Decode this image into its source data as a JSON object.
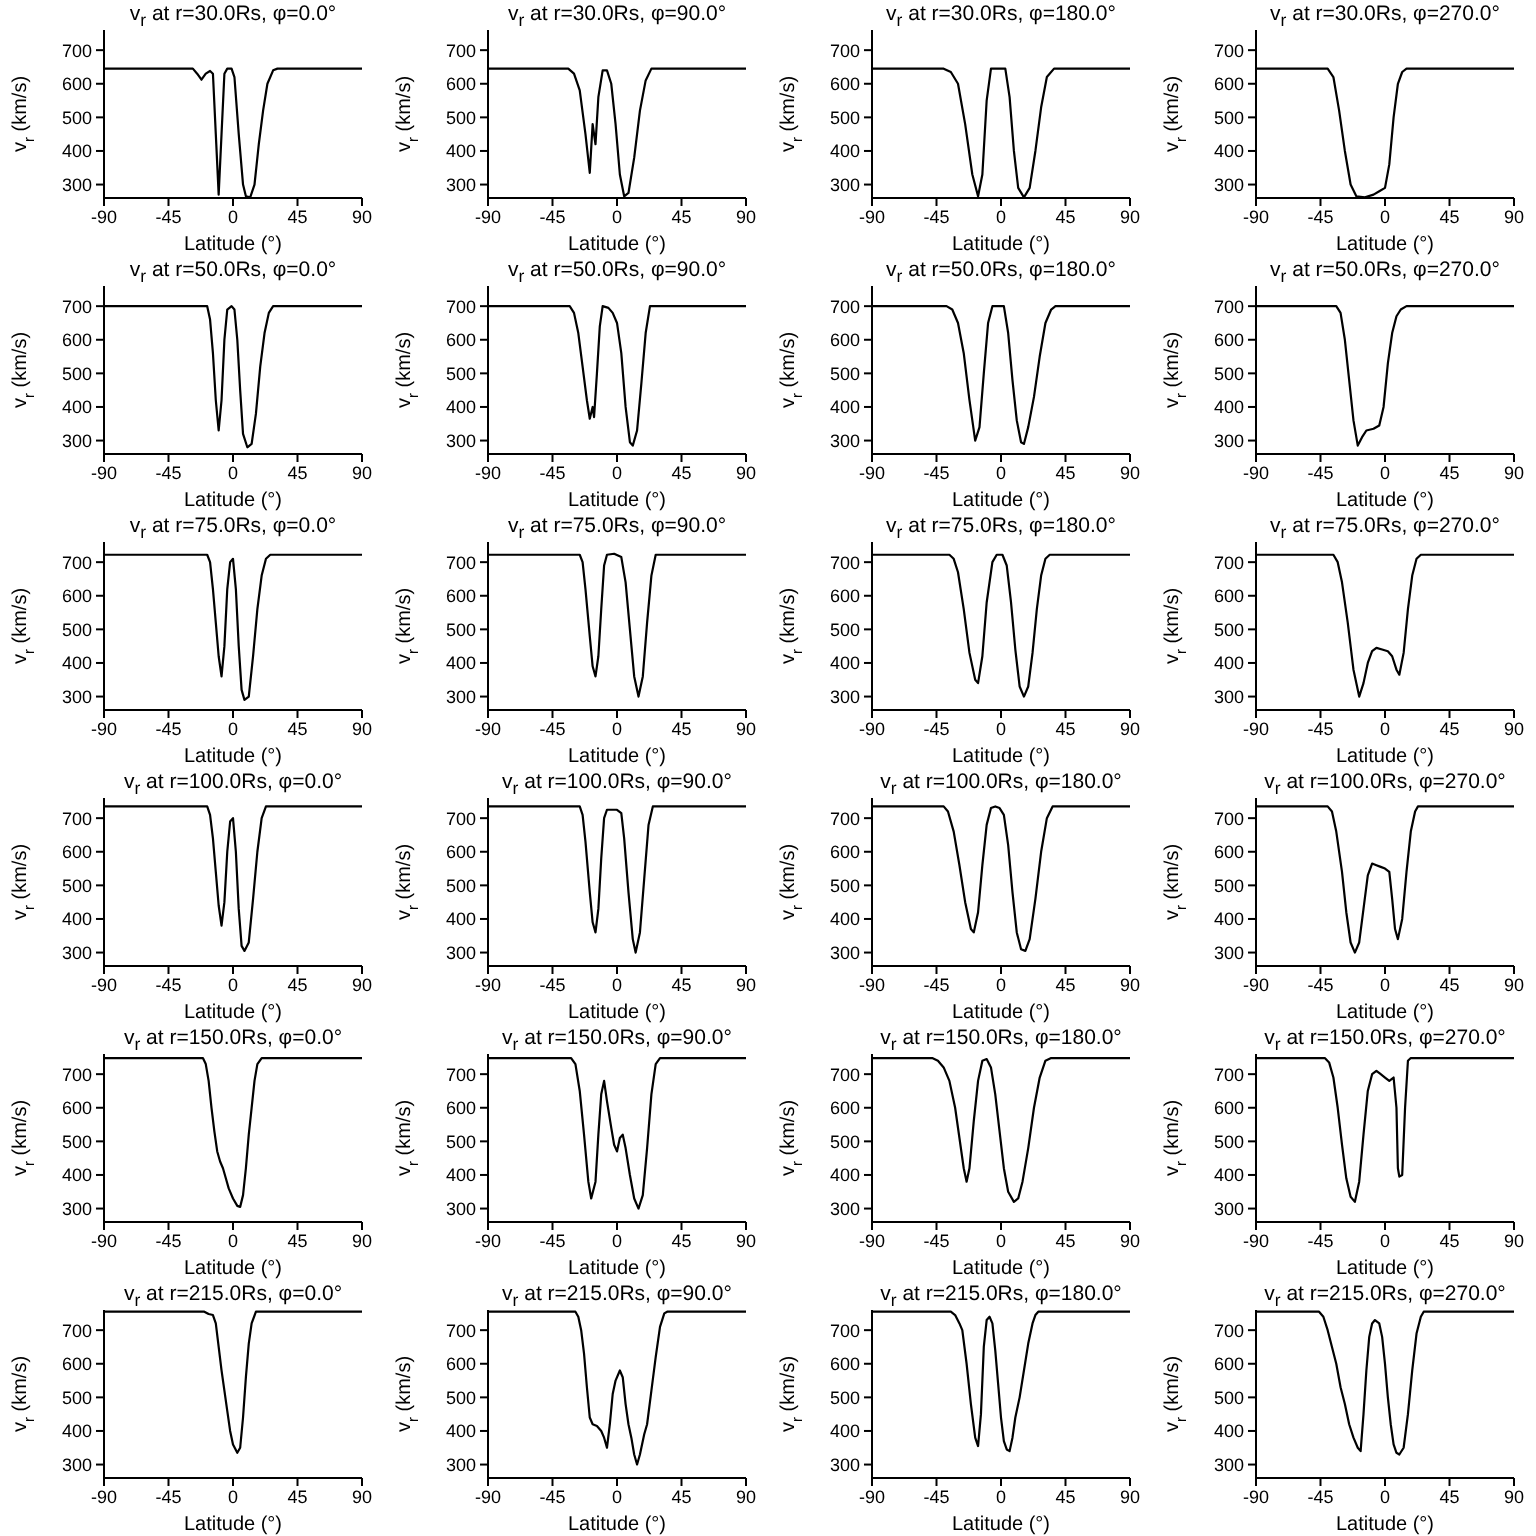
{
  "chart_data": [
    {
      "type": "line",
      "title": "v$_{r}$ at r=30.0Rs, φ=0.0°",
      "xlabel": "Latitude (°)",
      "ylabel": "v$_{r}$ (km/s)",
      "xlim": [
        -90,
        90
      ],
      "xticks": [
        -90,
        -45,
        0,
        45,
        90
      ],
      "ylim": [
        260,
        760
      ],
      "yticks": [
        300,
        400,
        500,
        600,
        700
      ],
      "marker": "none",
      "series": [
        {
          "color": "#000000",
          "x": [
            -90,
            -28,
            -25,
            -22,
            -19,
            -16,
            -14,
            -12,
            -10,
            -8,
            -6,
            -4,
            -1,
            1,
            4,
            7,
            9,
            12,
            15,
            18,
            21,
            24,
            28,
            31,
            90
          ],
          "values": [
            645,
            645,
            630,
            612,
            630,
            638,
            630,
            450,
            270,
            450,
            630,
            645,
            645,
            620,
            450,
            300,
            265,
            262,
            300,
            420,
            520,
            600,
            640,
            645,
            645
          ]
        }
      ]
    },
    {
      "type": "line",
      "title": "v$_{r}$ at r=30.0Rs, φ=90.0°",
      "xlabel": "Latitude (°)",
      "ylabel": "v$_{r}$ (km/s)",
      "xlim": [
        -90,
        90
      ],
      "xticks": [
        -90,
        -45,
        0,
        45,
        90
      ],
      "ylim": [
        260,
        760
      ],
      "yticks": [
        300,
        400,
        500,
        600,
        700
      ],
      "marker": "none",
      "series": [
        {
          "color": "#000000",
          "x": [
            -90,
            -34,
            -30,
            -26,
            -22,
            -19,
            -17,
            -15,
            -13,
            -10,
            -7,
            -4,
            -1,
            2,
            5,
            8,
            12,
            16,
            20,
            24,
            90
          ],
          "values": [
            645,
            645,
            630,
            580,
            450,
            335,
            480,
            420,
            560,
            640,
            640,
            600,
            480,
            330,
            265,
            275,
            380,
            520,
            610,
            645,
            645
          ]
        }
      ]
    },
    {
      "type": "line",
      "title": "v$_{r}$ at r=30.0Rs, φ=180.0°",
      "xlabel": "Latitude (°)",
      "ylabel": "v$_{r}$ (km/s)",
      "xlim": [
        -90,
        90
      ],
      "xticks": [
        -90,
        -45,
        0,
        45,
        90
      ],
      "ylim": [
        260,
        760
      ],
      "yticks": [
        300,
        400,
        500,
        600,
        700
      ],
      "marker": "none",
      "series": [
        {
          "color": "#000000",
          "x": [
            -90,
            -40,
            -35,
            -30,
            -25,
            -20,
            -16,
            -13,
            -10,
            -7,
            3,
            6,
            9,
            12,
            16,
            20,
            24,
            28,
            32,
            37,
            90
          ],
          "values": [
            645,
            645,
            635,
            600,
            480,
            330,
            265,
            330,
            550,
            645,
            645,
            560,
            400,
            290,
            262,
            290,
            400,
            530,
            620,
            645,
            645
          ]
        }
      ]
    },
    {
      "type": "line",
      "title": "v$_{r}$ at r=30.0Rs, φ=270.0°",
      "xlabel": "Latitude (°)",
      "ylabel": "v$_{r}$ (km/s)",
      "xlim": [
        -90,
        90
      ],
      "xticks": [
        -90,
        -45,
        0,
        45,
        90
      ],
      "ylim": [
        260,
        760
      ],
      "yticks": [
        300,
        400,
        500,
        600,
        700
      ],
      "marker": "none",
      "series": [
        {
          "color": "#000000",
          "x": [
            -90,
            -40,
            -36,
            -32,
            -28,
            -24,
            -20,
            -14,
            -8,
            -4,
            0,
            3,
            6,
            9,
            12,
            15,
            90
          ],
          "values": [
            645,
            645,
            620,
            520,
            400,
            300,
            265,
            262,
            270,
            280,
            290,
            360,
            500,
            600,
            635,
            645,
            645
          ]
        }
      ]
    },
    {
      "type": "line",
      "title": "v$_{r}$ at r=50.0Rs, φ=0.0°",
      "xlabel": "Latitude (°)",
      "ylabel": "v$_{r}$ (km/s)",
      "xlim": [
        -90,
        90
      ],
      "xticks": [
        -90,
        -45,
        0,
        45,
        90
      ],
      "ylim": [
        260,
        760
      ],
      "yticks": [
        300,
        400,
        500,
        600,
        700
      ],
      "marker": "none",
      "series": [
        {
          "color": "#000000",
          "x": [
            -90,
            -18,
            -16,
            -14,
            -12,
            -10,
            -8,
            -6,
            -4,
            -1,
            1,
            3,
            5,
            7,
            10,
            13,
            16,
            19,
            22,
            25,
            28,
            90
          ],
          "values": [
            700,
            700,
            660,
            560,
            420,
            330,
            420,
            600,
            690,
            700,
            690,
            600,
            450,
            320,
            280,
            290,
            380,
            520,
            620,
            680,
            700,
            700
          ]
        }
      ]
    },
    {
      "type": "line",
      "title": "v$_{r}$ at r=50.0Rs, φ=90.0°",
      "xlabel": "Latitude (°)",
      "ylabel": "v$_{r}$ (km/s)",
      "xlim": [
        -90,
        90
      ],
      "xticks": [
        -90,
        -45,
        0,
        45,
        90
      ],
      "ylim": [
        260,
        760
      ],
      "yticks": [
        300,
        400,
        500,
        600,
        700
      ],
      "marker": "none",
      "series": [
        {
          "color": "#000000",
          "x": [
            -90,
            -33,
            -30,
            -27,
            -24,
            -21,
            -19,
            -17,
            -16,
            -14,
            -12,
            -10,
            -6,
            -3,
            0,
            3,
            6,
            9,
            11,
            14,
            17,
            20,
            23,
            90
          ],
          "values": [
            700,
            700,
            680,
            620,
            520,
            420,
            365,
            400,
            370,
            500,
            640,
            700,
            695,
            680,
            650,
            560,
            400,
            295,
            285,
            330,
            470,
            620,
            700,
            700
          ]
        }
      ]
    },
    {
      "type": "line",
      "title": "v$_{r}$ at r=50.0Rs, φ=180.0°",
      "xlabel": "Latitude (°)",
      "ylabel": "v$_{r}$ (km/s)",
      "xlim": [
        -90,
        90
      ],
      "xticks": [
        -90,
        -45,
        0,
        45,
        90
      ],
      "ylim": [
        260,
        760
      ],
      "yticks": [
        300,
        400,
        500,
        600,
        700
      ],
      "marker": "none",
      "series": [
        {
          "color": "#000000",
          "x": [
            -90,
            -38,
            -34,
            -30,
            -26,
            -22,
            -18,
            -15,
            -12,
            -9,
            -6,
            2,
            5,
            8,
            11,
            14,
            16,
            19,
            23,
            27,
            31,
            35,
            38,
            90
          ],
          "values": [
            700,
            700,
            690,
            650,
            560,
            420,
            300,
            340,
            500,
            650,
            700,
            700,
            620,
            480,
            360,
            295,
            290,
            340,
            430,
            550,
            650,
            690,
            700,
            700
          ]
        }
      ]
    },
    {
      "type": "line",
      "title": "v$_{r}$ at r=50.0Rs, φ=270.0°",
      "xlabel": "Latitude (°)",
      "ylabel": "v$_{r}$ (km/s)",
      "xlim": [
        -90,
        90
      ],
      "xticks": [
        -90,
        -45,
        0,
        45,
        90
      ],
      "ylim": [
        260,
        760
      ],
      "yticks": [
        300,
        400,
        500,
        600,
        700
      ],
      "marker": "none",
      "series": [
        {
          "color": "#000000",
          "x": [
            -90,
            -34,
            -31,
            -28,
            -25,
            -22,
            -19,
            -16,
            -13,
            -8,
            -4,
            -1,
            2,
            5,
            8,
            11,
            15,
            90
          ],
          "values": [
            700,
            700,
            680,
            600,
            480,
            360,
            285,
            310,
            330,
            335,
            345,
            400,
            530,
            620,
            670,
            690,
            700,
            700
          ]
        }
      ]
    },
    {
      "type": "line",
      "title": "v$_{r}$ at r=75.0Rs, φ=0.0°",
      "xlabel": "Latitude (°)",
      "ylabel": "v$_{r}$ (km/s)",
      "xlim": [
        -90,
        90
      ],
      "xticks": [
        -90,
        -45,
        0,
        45,
        90
      ],
      "ylim": [
        260,
        760
      ],
      "yticks": [
        300,
        400,
        500,
        600,
        700
      ],
      "marker": "none",
      "series": [
        {
          "color": "#000000",
          "x": [
            -90,
            -18,
            -16,
            -14,
            -12,
            -10,
            -8,
            -6,
            -4,
            -2,
            0,
            2,
            4,
            6,
            8,
            11,
            14,
            17,
            20,
            23,
            26,
            90
          ],
          "values": [
            722,
            722,
            700,
            620,
            520,
            420,
            360,
            450,
            620,
            700,
            710,
            620,
            450,
            320,
            290,
            300,
            420,
            560,
            660,
            710,
            722,
            722
          ]
        }
      ]
    },
    {
      "type": "line",
      "title": "v$_{r}$ at r=75.0Rs, φ=90.0°",
      "xlabel": "Latitude (°)",
      "ylabel": "v$_{r}$ (km/s)",
      "xlim": [
        -90,
        90
      ],
      "xticks": [
        -90,
        -45,
        0,
        45,
        90
      ],
      "ylim": [
        260,
        760
      ],
      "yticks": [
        300,
        400,
        500,
        600,
        700
      ],
      "marker": "none",
      "series": [
        {
          "color": "#000000",
          "x": [
            -90,
            -26,
            -24,
            -22,
            -19,
            -17,
            -15,
            -13,
            -11,
            -9,
            -7,
            -2,
            3,
            6,
            9,
            12,
            15,
            18,
            21,
            24,
            27,
            90
          ],
          "values": [
            722,
            722,
            700,
            620,
            480,
            390,
            360,
            420,
            560,
            690,
            722,
            725,
            715,
            640,
            500,
            360,
            300,
            360,
            520,
            660,
            722,
            722
          ]
        }
      ]
    },
    {
      "type": "line",
      "title": "v$_{r}$ at r=75.0Rs, φ=180.0°",
      "xlabel": "Latitude (°)",
      "ylabel": "v$_{r}$ (km/s)",
      "xlim": [
        -90,
        90
      ],
      "xticks": [
        -90,
        -45,
        0,
        45,
        90
      ],
      "ylim": [
        260,
        760
      ],
      "yticks": [
        300,
        400,
        500,
        600,
        700
      ],
      "marker": "none",
      "series": [
        {
          "color": "#000000",
          "x": [
            -90,
            -36,
            -33,
            -30,
            -26,
            -22,
            -18,
            -16,
            -13,
            -10,
            -6,
            -3,
            1,
            4,
            7,
            10,
            13,
            16,
            19,
            22,
            25,
            28,
            31,
            34,
            90
          ],
          "values": [
            722,
            722,
            710,
            670,
            560,
            430,
            350,
            340,
            420,
            580,
            700,
            722,
            722,
            690,
            580,
            440,
            330,
            300,
            330,
            430,
            560,
            660,
            710,
            722,
            722
          ]
        }
      ]
    },
    {
      "type": "line",
      "title": "v$_{r}$ at r=75.0Rs, φ=270.0°",
      "xlabel": "Latitude (°)",
      "ylabel": "v$_{r}$ (km/s)",
      "xlim": [
        -90,
        90
      ],
      "xticks": [
        -90,
        -45,
        0,
        45,
        90
      ],
      "ylim": [
        260,
        760
      ],
      "yticks": [
        300,
        400,
        500,
        600,
        700
      ],
      "marker": "none",
      "series": [
        {
          "color": "#000000",
          "x": [
            -90,
            -36,
            -33,
            -30,
            -26,
            -22,
            -18,
            -15,
            -12,
            -9,
            -6,
            -2,
            2,
            5,
            8,
            10,
            13,
            16,
            19,
            22,
            25,
            90
          ],
          "values": [
            722,
            722,
            700,
            640,
            520,
            380,
            300,
            340,
            400,
            435,
            445,
            440,
            435,
            420,
            380,
            365,
            430,
            560,
            660,
            710,
            722,
            722
          ]
        }
      ]
    },
    {
      "type": "line",
      "title": "v$_{r}$ at r=100.0Rs, φ=0.0°",
      "xlabel": "Latitude (°)",
      "ylabel": "v$_{r}$ (km/s)",
      "xlim": [
        -90,
        90
      ],
      "xticks": [
        -90,
        -45,
        0,
        45,
        90
      ],
      "ylim": [
        260,
        760
      ],
      "yticks": [
        300,
        400,
        500,
        600,
        700
      ],
      "marker": "none",
      "series": [
        {
          "color": "#000000",
          "x": [
            -90,
            -18,
            -16,
            -14,
            -12,
            -10,
            -8,
            -6,
            -4,
            -2,
            0,
            2,
            4,
            6,
            8,
            11,
            14,
            17,
            20,
            23,
            90
          ],
          "values": [
            735,
            735,
            710,
            640,
            540,
            440,
            380,
            450,
            600,
            690,
            700,
            600,
            430,
            320,
            305,
            330,
            460,
            600,
            700,
            735,
            735
          ]
        }
      ]
    },
    {
      "type": "line",
      "title": "v$_{r}$ at r=100.0Rs, φ=90.0°",
      "xlabel": "Latitude (°)",
      "ylabel": "v$_{r}$ (km/s)",
      "xlim": [
        -90,
        90
      ],
      "xticks": [
        -90,
        -45,
        0,
        45,
        90
      ],
      "ylim": [
        260,
        760
      ],
      "yticks": [
        300,
        400,
        500,
        600,
        700
      ],
      "marker": "none",
      "series": [
        {
          "color": "#000000",
          "x": [
            -90,
            -26,
            -24,
            -22,
            -19,
            -17,
            -15,
            -13,
            -11,
            -9,
            -7,
            0,
            3,
            5,
            8,
            11,
            13,
            16,
            19,
            22,
            25,
            90
          ],
          "values": [
            735,
            735,
            710,
            630,
            480,
            390,
            360,
            430,
            580,
            700,
            725,
            725,
            715,
            640,
            480,
            340,
            300,
            360,
            520,
            680,
            735,
            735
          ]
        }
      ]
    },
    {
      "type": "line",
      "title": "v$_{r}$ at r=100.0Rs, φ=180.0°",
      "xlabel": "Latitude (°)",
      "ylabel": "v$_{r}$ (km/s)",
      "xlim": [
        -90,
        90
      ],
      "xticks": [
        -90,
        -45,
        0,
        45,
        90
      ],
      "ylim": [
        260,
        760
      ],
      "yticks": [
        300,
        400,
        500,
        600,
        700
      ],
      "marker": "none",
      "series": [
        {
          "color": "#000000",
          "x": [
            -90,
            -40,
            -37,
            -33,
            -29,
            -25,
            -21,
            -19,
            -16,
            -13,
            -10,
            -7,
            -4,
            -1,
            2,
            5,
            8,
            11,
            14,
            17,
            20,
            24,
            28,
            32,
            36,
            90
          ],
          "values": [
            735,
            735,
            720,
            660,
            560,
            450,
            370,
            360,
            420,
            560,
            680,
            730,
            735,
            730,
            710,
            620,
            480,
            360,
            310,
            305,
            340,
            460,
            600,
            700,
            735,
            735
          ]
        }
      ]
    },
    {
      "type": "line",
      "title": "v$_{r}$ at r=100.0Rs, φ=270.0°",
      "xlabel": "Latitude (°)",
      "ylabel": "v$_{r}$ (km/s)",
      "xlim": [
        -90,
        90
      ],
      "xticks": [
        -90,
        -45,
        0,
        45,
        90
      ],
      "ylim": [
        260,
        760
      ],
      "yticks": [
        300,
        400,
        500,
        600,
        700
      ],
      "marker": "none",
      "series": [
        {
          "color": "#000000",
          "x": [
            -90,
            -40,
            -37,
            -34,
            -30,
            -27,
            -24,
            -21,
            -18,
            -15,
            -12,
            -9,
            -6,
            -3,
            0,
            3,
            5,
            7,
            9,
            12,
            15,
            18,
            21,
            23,
            90
          ],
          "values": [
            735,
            735,
            720,
            660,
            540,
            420,
            330,
            300,
            330,
            430,
            530,
            565,
            560,
            555,
            550,
            540,
            460,
            370,
            340,
            400,
            540,
            660,
            720,
            735,
            735
          ]
        }
      ]
    },
    {
      "type": "line",
      "title": "v$_{r}$ at r=150.0Rs, φ=0.0°",
      "xlabel": "Latitude (°)",
      "ylabel": "v$_{r}$ (km/s)",
      "xlim": [
        -90,
        90
      ],
      "xticks": [
        -90,
        -45,
        0,
        45,
        90
      ],
      "ylim": [
        260,
        760
      ],
      "yticks": [
        300,
        400,
        500,
        600,
        700
      ],
      "marker": "none",
      "series": [
        {
          "color": "#000000",
          "x": [
            -90,
            -21,
            -19,
            -17,
            -15,
            -13,
            -11,
            -9,
            -7,
            -5,
            -3,
            0,
            3,
            5,
            7,
            9,
            11,
            13,
            15,
            17,
            20,
            90
          ],
          "values": [
            748,
            748,
            730,
            680,
            600,
            530,
            470,
            440,
            420,
            390,
            360,
            330,
            308,
            305,
            340,
            420,
            520,
            600,
            680,
            730,
            748,
            748
          ]
        }
      ]
    },
    {
      "type": "line",
      "title": "v$_{r}$ at r=150.0Rs, φ=90.0°",
      "xlabel": "Latitude (°)",
      "ylabel": "v$_{r}$ (km/s)",
      "xlim": [
        -90,
        90
      ],
      "xticks": [
        -90,
        -45,
        0,
        45,
        90
      ],
      "ylim": [
        260,
        760
      ],
      "yticks": [
        300,
        400,
        500,
        600,
        700
      ],
      "marker": "none",
      "series": [
        {
          "color": "#000000",
          "x": [
            -90,
            -32,
            -29,
            -26,
            -23,
            -20,
            -18,
            -15,
            -13,
            -11,
            -9,
            -7,
            -4,
            -2,
            0,
            2,
            4,
            6,
            9,
            12,
            15,
            18,
            21,
            24,
            27,
            30,
            90
          ],
          "values": [
            748,
            748,
            730,
            650,
            520,
            380,
            330,
            380,
            520,
            640,
            680,
            620,
            540,
            490,
            470,
            510,
            520,
            480,
            400,
            330,
            300,
            340,
            480,
            640,
            730,
            748,
            748
          ]
        }
      ]
    },
    {
      "type": "line",
      "title": "v$_{r}$ at r=150.0Rs, φ=180.0°",
      "xlabel": "Latitude (°)",
      "ylabel": "v$_{r}$ (km/s)",
      "xlim": [
        -90,
        90
      ],
      "xticks": [
        -90,
        -45,
        0,
        45,
        90
      ],
      "ylim": [
        260,
        760
      ],
      "yticks": [
        300,
        400,
        500,
        600,
        700
      ],
      "marker": "none",
      "series": [
        {
          "color": "#000000",
          "x": [
            -90,
            -48,
            -44,
            -40,
            -36,
            -32,
            -29,
            -26,
            -24,
            -22,
            -19,
            -16,
            -13,
            -10,
            -7,
            -4,
            -1,
            2,
            5,
            9,
            12,
            15,
            19,
            23,
            27,
            31,
            35,
            90
          ],
          "values": [
            748,
            748,
            740,
            720,
            680,
            600,
            510,
            420,
            380,
            420,
            560,
            680,
            740,
            745,
            720,
            640,
            530,
            420,
            350,
            320,
            330,
            380,
            480,
            600,
            690,
            740,
            748,
            748
          ]
        }
      ]
    },
    {
      "type": "line",
      "title": "v$_{r}$ at r=150.0Rs, φ=270.0°",
      "xlabel": "Latitude (°)",
      "ylabel": "v$_{r}$ (km/s)",
      "xlim": [
        -90,
        90
      ],
      "xticks": [
        -90,
        -45,
        0,
        45,
        90
      ],
      "ylim": [
        260,
        760
      ],
      "yticks": [
        300,
        400,
        500,
        600,
        700
      ],
      "marker": "none",
      "series": [
        {
          "color": "#000000",
          "x": [
            -90,
            -42,
            -39,
            -36,
            -33,
            -30,
            -27,
            -24,
            -21,
            -18,
            -15,
            -12,
            -9,
            -6,
            -3,
            0,
            3,
            6,
            8,
            9,
            10,
            12,
            14,
            16,
            18,
            90
          ],
          "values": [
            748,
            748,
            735,
            690,
            600,
            490,
            390,
            335,
            320,
            380,
            520,
            650,
            700,
            710,
            700,
            690,
            680,
            690,
            600,
            420,
            395,
            400,
            600,
            740,
            748,
            748
          ]
        }
      ]
    },
    {
      "type": "line",
      "title": "v$_{r}$ at r=215.0Rs, φ=0.0°",
      "xlabel": "Latitude (°)",
      "ylabel": "v$_{r}$ (km/s)",
      "xlim": [
        -90,
        90
      ],
      "xticks": [
        -90,
        -45,
        0,
        45,
        90
      ],
      "ylim": [
        260,
        760
      ],
      "yticks": [
        300,
        400,
        500,
        600,
        700
      ],
      "marker": "none",
      "series": [
        {
          "color": "#000000",
          "x": [
            -90,
            -20,
            -17,
            -14,
            -12,
            -10,
            -8,
            -6,
            -4,
            -2,
            0,
            3,
            5,
            7,
            9,
            11,
            13,
            16,
            90
          ],
          "values": [
            755,
            755,
            748,
            745,
            720,
            650,
            580,
            520,
            460,
            400,
            360,
            335,
            350,
            440,
            560,
            660,
            720,
            755,
            755
          ]
        }
      ]
    },
    {
      "type": "line",
      "title": "v$_{r}$ at r=215.0Rs, φ=90.0°",
      "xlabel": "Latitude (°)",
      "ylabel": "v$_{r}$ (km/s)",
      "xlim": [
        -90,
        90
      ],
      "xticks": [
        -90,
        -45,
        0,
        45,
        90
      ],
      "ylim": [
        260,
        760
      ],
      "yticks": [
        300,
        400,
        500,
        600,
        700
      ],
      "marker": "none",
      "series": [
        {
          "color": "#000000",
          "x": [
            -90,
            -29,
            -27,
            -25,
            -23,
            -21,
            -19,
            -17,
            -14,
            -11,
            -9,
            -7,
            -5,
            -3,
            -1,
            2,
            4,
            6,
            8,
            10,
            12,
            14,
            16,
            19,
            21,
            24,
            27,
            30,
            33,
            35,
            90
          ],
          "values": [
            755,
            755,
            740,
            700,
            630,
            530,
            440,
            420,
            415,
            400,
            380,
            350,
            420,
            510,
            550,
            580,
            560,
            480,
            420,
            380,
            330,
            300,
            330,
            390,
            420,
            520,
            620,
            710,
            750,
            755,
            755
          ]
        }
      ]
    },
    {
      "type": "line",
      "title": "v$_{r}$ at r=215.0Rs, φ=180.0°",
      "xlabel": "Latitude (°)",
      "ylabel": "v$_{r}$ (km/s)",
      "xlim": [
        -90,
        90
      ],
      "xticks": [
        -90,
        -45,
        0,
        45,
        90
      ],
      "ylim": [
        260,
        760
      ],
      "yticks": [
        300,
        400,
        500,
        600,
        700
      ],
      "marker": "none",
      "series": [
        {
          "color": "#000000",
          "x": [
            -90,
            -35,
            -32,
            -29,
            -27,
            -24,
            -21,
            -18,
            -16,
            -14,
            -12,
            -10,
            -8,
            -6,
            -4,
            -2,
            0,
            2,
            4,
            6,
            8,
            10,
            13,
            16,
            19,
            22,
            24,
            26,
            90
          ],
          "values": [
            755,
            755,
            745,
            720,
            700,
            600,
            480,
            380,
            355,
            450,
            650,
            730,
            740,
            720,
            640,
            540,
            440,
            370,
            345,
            340,
            380,
            440,
            500,
            580,
            660,
            720,
            745,
            755,
            755
          ]
        }
      ]
    },
    {
      "type": "line",
      "title": "v$_{r}$ at r=215.0Rs, φ=270.0°",
      "xlabel": "Latitude (°)",
      "ylabel": "v$_{r}$ (km/s)",
      "xlim": [
        -90,
        90
      ],
      "xticks": [
        -90,
        -45,
        0,
        45,
        90
      ],
      "ylim": [
        260,
        760
      ],
      "yticks": [
        300,
        400,
        500,
        600,
        700
      ],
      "marker": "none",
      "series": [
        {
          "color": "#000000",
          "x": [
            -90,
            -46,
            -43,
            -40,
            -37,
            -34,
            -31,
            -28,
            -25,
            -22,
            -19,
            -17,
            -15,
            -13,
            -11,
            -9,
            -7,
            -4,
            -2,
            0,
            2,
            4,
            6,
            8,
            10,
            13,
            16,
            19,
            22,
            25,
            27,
            90
          ],
          "values": [
            755,
            755,
            740,
            700,
            650,
            600,
            530,
            480,
            420,
            380,
            350,
            340,
            450,
            580,
            680,
            720,
            730,
            720,
            680,
            600,
            500,
            420,
            360,
            335,
            330,
            350,
            450,
            580,
            690,
            740,
            755,
            755
          ]
        }
      ]
    }
  ]
}
